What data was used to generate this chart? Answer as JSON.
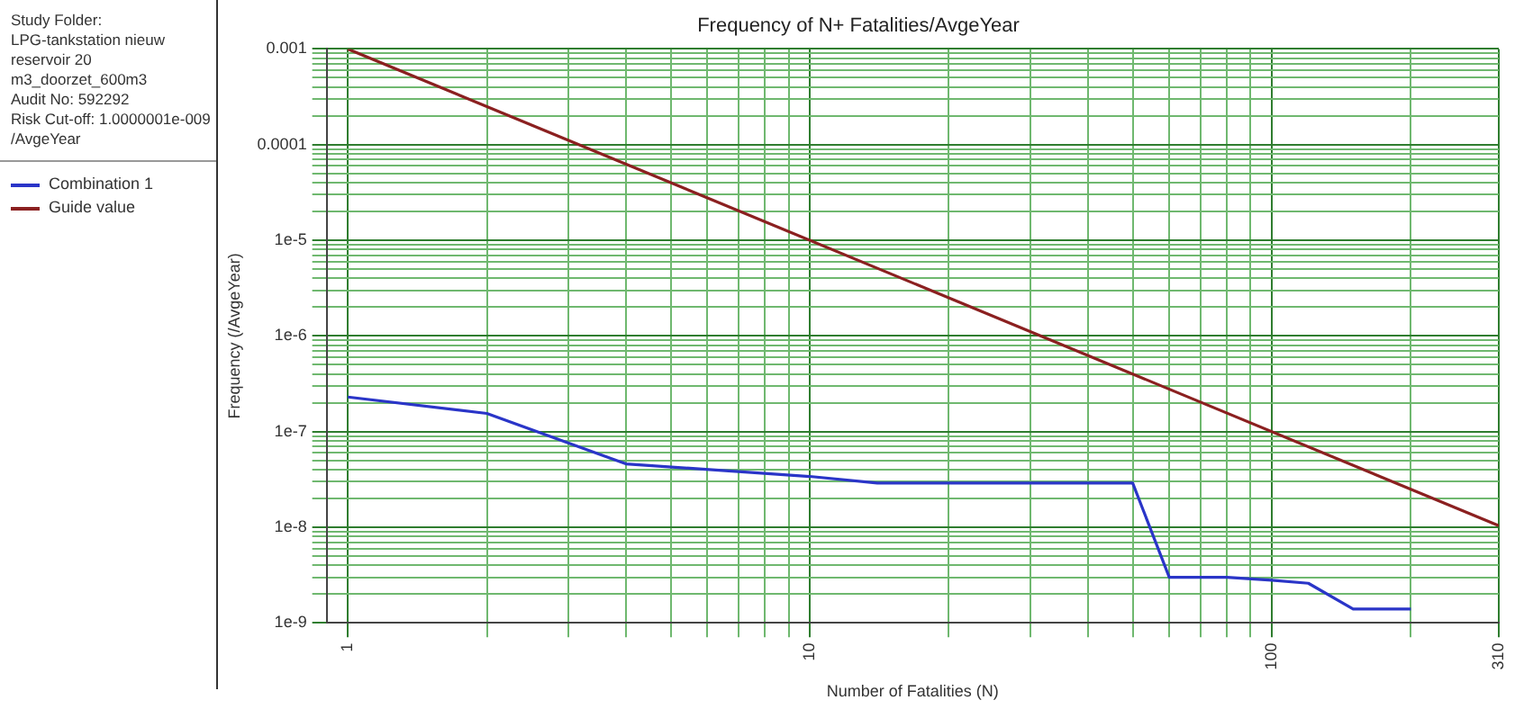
{
  "chart_data": {
    "type": "line",
    "title": "Frequency of N+ Fatalities/AvgeYear",
    "xlabel": "Number of Fatalities (N)",
    "ylabel": "Frequency (/AvgeYear)",
    "annotations": [
      "Study Folder:",
      "LPG-tankstation nieuw",
      "reservoir 20",
      "m3_doorzet_600m3",
      "Audit No: 592292",
      "Risk Cut-off: 1.0000001e-009",
      "/AvgeYear"
    ],
    "log": "xy",
    "grid": true,
    "legend": "left",
    "xlim": [
      0.9,
      310
    ],
    "ylim": [
      1e-09,
      0.001
    ],
    "xticks": [
      1,
      {
        "value": 2,
        "label": null
      },
      {
        "value": 3,
        "label": null
      },
      {
        "value": 4,
        "label": null
      },
      {
        "value": 5,
        "label": null
      },
      {
        "value": 6,
        "label": null
      },
      {
        "value": 7,
        "label": null
      },
      {
        "value": 8,
        "label": null
      },
      {
        "value": 9,
        "label": null
      },
      10,
      {
        "value": 20,
        "label": null
      },
      {
        "value": 30,
        "label": null
      },
      {
        "value": 40,
        "label": null
      },
      {
        "value": 50,
        "label": null
      },
      {
        "value": 60,
        "label": null
      },
      {
        "value": 70,
        "label": null
      },
      {
        "value": 80,
        "label": null
      },
      {
        "value": 90,
        "label": null
      },
      100,
      {
        "value": 200,
        "label": null
      },
      310
    ],
    "yticks": [
      {
        "value": 1e-09,
        "label": "1e-9"
      },
      {
        "value": 2e-09,
        "label": null
      },
      {
        "value": 3e-09,
        "label": null
      },
      {
        "value": 4e-09,
        "label": null
      },
      {
        "value": 5e-09,
        "label": null
      },
      {
        "value": 6e-09,
        "label": null
      },
      {
        "value": 7e-09,
        "label": null
      },
      {
        "value": 8e-09,
        "label": null
      },
      {
        "value": 9e-09,
        "label": null
      },
      {
        "value": 1e-08,
        "label": "1e-8"
      },
      {
        "value": 2e-08,
        "label": null
      },
      {
        "value": 3e-08,
        "label": null
      },
      {
        "value": 4e-08,
        "label": null
      },
      {
        "value": 5e-08,
        "label": null
      },
      {
        "value": 6e-08,
        "label": null
      },
      {
        "value": 7e-08,
        "label": null
      },
      {
        "value": 8e-08,
        "label": null
      },
      {
        "value": 9e-08,
        "label": null
      },
      {
        "value": 1e-07,
        "label": "1e-7"
      },
      {
        "value": 2e-07,
        "label": null
      },
      {
        "value": 3e-07,
        "label": null
      },
      {
        "value": 4e-07,
        "label": null
      },
      {
        "value": 5e-07,
        "label": null
      },
      {
        "value": 6e-07,
        "label": null
      },
      {
        "value": 7e-07,
        "label": null
      },
      {
        "value": 8e-07,
        "label": null
      },
      {
        "value": 9e-07,
        "label": null
      },
      {
        "value": 1e-06,
        "label": "1e-6"
      },
      {
        "value": 2e-06,
        "label": null
      },
      {
        "value": 3e-06,
        "label": null
      },
      {
        "value": 4e-06,
        "label": null
      },
      {
        "value": 5e-06,
        "label": null
      },
      {
        "value": 6e-06,
        "label": null
      },
      {
        "value": 7e-06,
        "label": null
      },
      {
        "value": 8e-06,
        "label": null
      },
      {
        "value": 9e-06,
        "label": null
      },
      {
        "value": 1e-05,
        "label": "1e-5"
      },
      {
        "value": 2e-05,
        "label": null
      },
      {
        "value": 3e-05,
        "label": null
      },
      {
        "value": 4e-05,
        "label": null
      },
      {
        "value": 5e-05,
        "label": null
      },
      {
        "value": 6e-05,
        "label": null
      },
      {
        "value": 7e-05,
        "label": null
      },
      {
        "value": 8e-05,
        "label": null
      },
      {
        "value": 9e-05,
        "label": null
      },
      {
        "value": 0.0001,
        "label": "0.0001"
      },
      {
        "value": 0.0002,
        "label": null
      },
      {
        "value": 0.0003,
        "label": null
      },
      {
        "value": 0.0004,
        "label": null
      },
      {
        "value": 0.0005,
        "label": null
      },
      {
        "value": 0.0006,
        "label": null
      },
      {
        "value": 0.0007,
        "label": null
      },
      {
        "value": 0.0008,
        "label": null
      },
      {
        "value": 0.0009,
        "label": null
      },
      {
        "value": 0.001,
        "label": "0.001"
      }
    ],
    "series": [
      {
        "name": "Combination 1",
        "color": "#2a35c8",
        "x": [
          1,
          2,
          4,
          10,
          14,
          50,
          60,
          80,
          100,
          120,
          150,
          200
        ],
        "values": [
          2.3e-07,
          1.55e-07,
          4.6e-08,
          3.4e-08,
          2.9e-08,
          2.9e-08,
          3e-09,
          3e-09,
          2.8e-09,
          2.6e-09,
          1.4e-09,
          1.4e-09
        ]
      },
      {
        "name": "Guide value",
        "color": "#8b2020",
        "x": [
          1,
          310
        ],
        "values": [
          0.001,
          1.04e-08
        ]
      }
    ]
  }
}
